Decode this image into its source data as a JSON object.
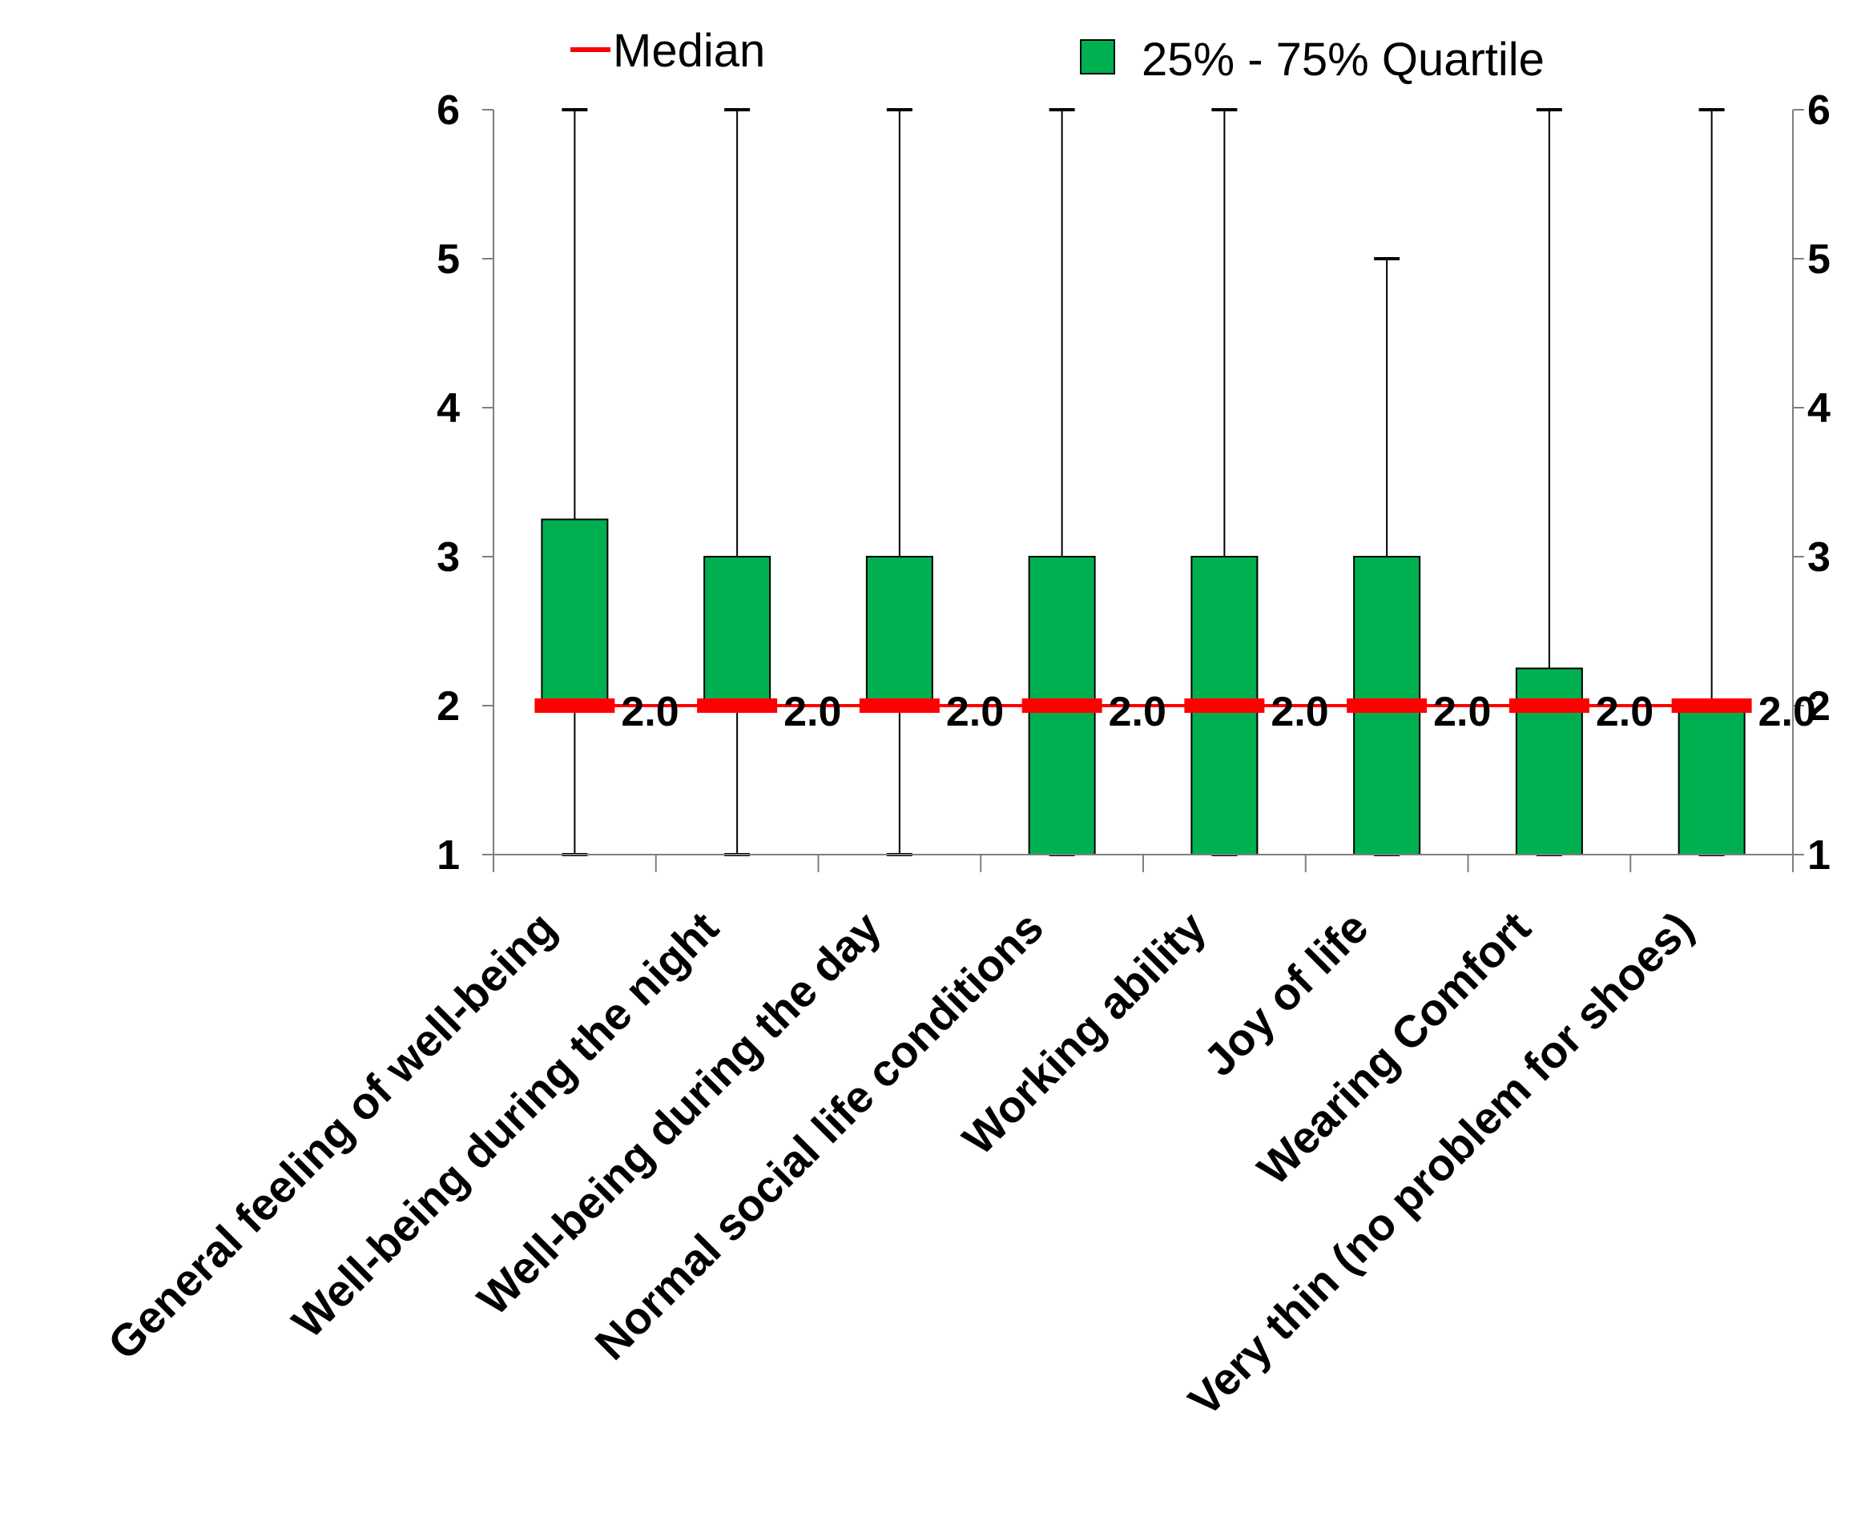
{
  "chart_data": {
    "type": "box",
    "categories": [
      "General feeling of well-being",
      "Well-being during the night",
      "Well-being during the day",
      "Normal social life conditions",
      "Working ability",
      "Joy of life",
      "Wearing Comfort",
      "Very thin (no problem for shoes)"
    ],
    "series": [
      {
        "name": "Median",
        "values": [
          2,
          2,
          2,
          2,
          2,
          2,
          2,
          2
        ]
      },
      {
        "name": "25% - 75% Quartile",
        "q1": [
          2,
          2,
          2,
          1,
          1,
          1,
          1,
          1
        ],
        "q3": [
          3.25,
          3,
          3,
          3,
          3,
          3,
          2.25,
          2
        ]
      }
    ],
    "whisker_min": [
      1,
      1,
      1,
      1,
      1,
      1,
      1,
      1
    ],
    "whisker_max": [
      6,
      6,
      6,
      6,
      6,
      5,
      6,
      6
    ],
    "median_labels": [
      "2.0",
      "2.0",
      "2.0",
      "2.0",
      "2.0",
      "2.0",
      "2.0",
      "2.0"
    ],
    "yticks": [
      "1",
      "2",
      "3",
      "4",
      "5",
      "6"
    ],
    "ylim": [
      1,
      6
    ],
    "secondary_yaxis": true,
    "legend": {
      "position": "top",
      "median": "Median",
      "quartile": "25% - 75% Quartile"
    },
    "colors": {
      "box": "#00b050",
      "median": "#ff0000",
      "whisker": "#000000",
      "axis": "#7f7f7f"
    }
  }
}
